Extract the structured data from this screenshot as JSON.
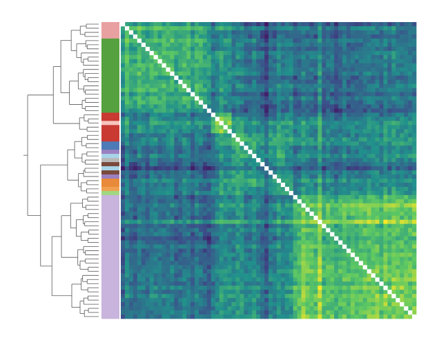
{
  "chart_data": {
    "type": "heatmap",
    "title": "",
    "xlabel": "",
    "ylabel": "",
    "n": 72,
    "colormap": [
      "#440154",
      "#3b528b",
      "#21918c",
      "#5ec962",
      "#fde725"
    ],
    "diagonal_color": "#ffffff",
    "grid": false,
    "legend": "none",
    "tick_labels_shown": false,
    "dendrogram": {
      "side": "left",
      "line_color": "#555555"
    },
    "row_groups": [
      {
        "color": "#e8a0a0",
        "count": 4
      },
      {
        "color": "#55a03f",
        "count": 18
      },
      {
        "color": "#c83a32",
        "count": 2
      },
      {
        "color": "#f6c4bd",
        "count": 1
      },
      {
        "color": "#c83a32",
        "count": 4
      },
      {
        "color": "#4e7ab8",
        "count": 2
      },
      {
        "color": "#9a80c0",
        "count": 1
      },
      {
        "color": "#a8d4e8",
        "count": 1
      },
      {
        "color": "#b8b8b8",
        "count": 1
      },
      {
        "color": "#7a4a3c",
        "count": 1
      },
      {
        "color": "#a8d4e8",
        "count": 1
      },
      {
        "color": "#7a4a3c",
        "count": 1
      },
      {
        "color": "#9a80c0",
        "count": 1
      },
      {
        "color": "#e88a3a",
        "count": 2
      },
      {
        "color": "#f0a050",
        "count": 1
      },
      {
        "color": "#a0d880",
        "count": 1
      },
      {
        "color": "#c8b4dc",
        "count": 30
      }
    ],
    "cluster_blocks": [
      {
        "start": 0,
        "end": 22,
        "mean": 0.62
      },
      {
        "start": 22,
        "end": 27,
        "mean": 0.72
      },
      {
        "start": 27,
        "end": 40,
        "mean": 0.55
      },
      {
        "start": 40,
        "end": 42,
        "mean": 0.55
      },
      {
        "start": 42,
        "end": 72,
        "mean": 0.74
      }
    ],
    "background_mean": 0.38,
    "value_range": [
      0,
      1
    ]
  }
}
